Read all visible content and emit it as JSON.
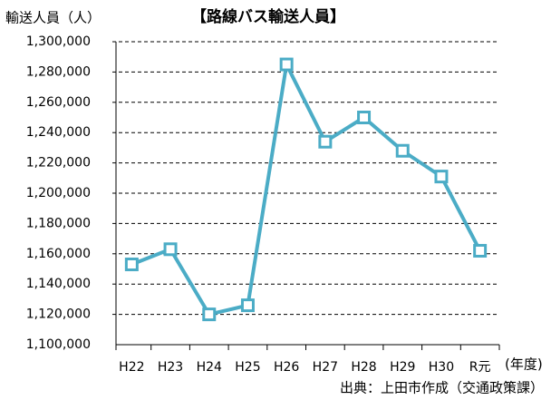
{
  "chart_data": {
    "type": "line",
    "title": "【路線バス輸送人員】",
    "y_label": "輸送人員（人）",
    "x_label": "(年度)",
    "source": "出典：上田市作成（交通政策課）",
    "categories": [
      "H22",
      "H23",
      "H24",
      "H25",
      "H26",
      "H27",
      "H28",
      "H29",
      "H30",
      "R元"
    ],
    "series": [
      {
        "name": "路線バス輸送人員",
        "color": "#4bacc6",
        "values": [
          1153000,
          1163000,
          1120000,
          1126000,
          1285000,
          1234000,
          1250000,
          1228000,
          1211000,
          1162000
        ]
      }
    ],
    "ylim": [
      1100000,
      1300000
    ],
    "yticks": [
      {
        "value": 1100000,
        "label": "1,100,000"
      },
      {
        "value": 1120000,
        "label": "1,120,000"
      },
      {
        "value": 1140000,
        "label": "1,140,000"
      },
      {
        "value": 1160000,
        "label": "1,160,000"
      },
      {
        "value": 1180000,
        "label": "1,180,000"
      },
      {
        "value": 1200000,
        "label": "1,200,000"
      },
      {
        "value": 1220000,
        "label": "1,220,000"
      },
      {
        "value": 1240000,
        "label": "1,240,000"
      },
      {
        "value": 1260000,
        "label": "1,260,000"
      },
      {
        "value": 1280000,
        "label": "1,280,000"
      },
      {
        "value": 1300000,
        "label": "1,300,000"
      }
    ],
    "grid": true
  }
}
